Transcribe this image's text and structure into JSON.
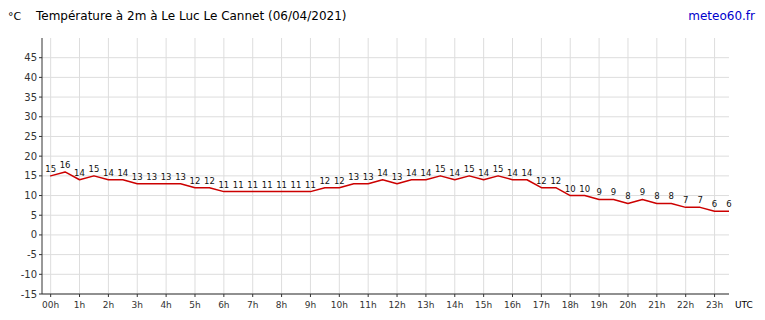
{
  "chart_data": {
    "type": "line",
    "title": "Température à 2m à Le Luc Le Cannet (06/04/2021)",
    "y_label": "°C",
    "x_label": "UTC",
    "annotations": [
      {
        "text": "meteo60.fr",
        "color": "#0000cc"
      }
    ],
    "x": [
      0,
      0.5,
      1,
      1.5,
      2,
      2.5,
      3,
      3.5,
      4,
      4.5,
      5,
      5.5,
      6,
      6.5,
      7,
      7.5,
      8,
      8.5,
      9,
      9.5,
      10,
      10.5,
      11,
      11.5,
      12,
      12.5,
      13,
      13.5,
      14,
      14.5,
      15,
      15.5,
      16,
      16.5,
      17,
      17.5,
      18,
      18.5,
      19,
      19.5,
      20,
      20.5,
      21,
      21.5,
      22,
      22.5,
      23,
      23.5
    ],
    "values": [
      15,
      16,
      14,
      15,
      14,
      14,
      13,
      13,
      13,
      13,
      12,
      12,
      11,
      11,
      11,
      11,
      11,
      11,
      11,
      12,
      12,
      13,
      13,
      14,
      13,
      14,
      14,
      15,
      14,
      15,
      14,
      15,
      14,
      14,
      12,
      12,
      10,
      10,
      9,
      9,
      8,
      9,
      8,
      8,
      7,
      7,
      6,
      6
    ],
    "color": "#cc0000",
    "xlim": [
      -0.3,
      23.5
    ],
    "xticks": [
      {
        "value": 0,
        "label": "00h"
      },
      {
        "value": 1,
        "label": "1h"
      },
      {
        "value": 2,
        "label": "2h"
      },
      {
        "value": 3,
        "label": "3h"
      },
      {
        "value": 4,
        "label": "4h"
      },
      {
        "value": 5,
        "label": "5h"
      },
      {
        "value": 6,
        "label": "6h"
      },
      {
        "value": 7,
        "label": "7h"
      },
      {
        "value": 8,
        "label": "8h"
      },
      {
        "value": 9,
        "label": "9h"
      },
      {
        "value": 10,
        "label": "10h"
      },
      {
        "value": 11,
        "label": "11h"
      },
      {
        "value": 12,
        "label": "12h"
      },
      {
        "value": 13,
        "label": "13h"
      },
      {
        "value": 14,
        "label": "14h"
      },
      {
        "value": 15,
        "label": "15h"
      },
      {
        "value": 16,
        "label": "16h"
      },
      {
        "value": 17,
        "label": "17h"
      },
      {
        "value": 18,
        "label": "18h"
      },
      {
        "value": 19,
        "label": "19h"
      },
      {
        "value": 20,
        "label": "20h"
      },
      {
        "value": 21,
        "label": "21h"
      },
      {
        "value": 22,
        "label": "22h"
      },
      {
        "value": 23,
        "label": "23h"
      }
    ],
    "ylim": [
      -15,
      50
    ],
    "yticks": [
      -15,
      -10,
      -5,
      0,
      5,
      10,
      15,
      20,
      25,
      30,
      35,
      40,
      45
    ],
    "grid": true,
    "data_labels": true
  }
}
